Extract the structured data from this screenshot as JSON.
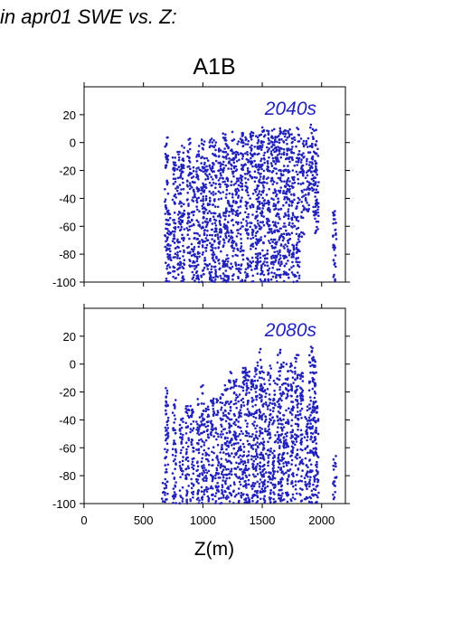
{
  "header": {
    "title": "in apr01 SWE vs. Z:"
  },
  "figure": {
    "title": "A1B",
    "xlabel": "Z(m)",
    "accent_color": "#2222bb"
  },
  "chart_data": [
    {
      "type": "scatter",
      "label": "2040s",
      "xlim": [
        0,
        2200
      ],
      "ylim": [
        -100,
        40
      ],
      "x_ticks": [
        0,
        500,
        1000,
        1500,
        2000
      ],
      "y_ticks": [
        20,
        0,
        -20,
        -40,
        -60,
        -80,
        -100
      ],
      "grid": false,
      "columns": [
        [
          695,
          -100,
          4
        ],
        [
          720,
          -100,
          -50
        ],
        [
          760,
          -100,
          -10
        ],
        [
          800,
          -95,
          -5
        ],
        [
          830,
          -100,
          0
        ],
        [
          880,
          -90,
          3
        ],
        [
          920,
          -100,
          -15
        ],
        [
          960,
          -100,
          2
        ],
        [
          1000,
          -100,
          5
        ],
        [
          1030,
          -95,
          -8
        ],
        [
          1070,
          -100,
          6
        ],
        [
          1100,
          -100,
          2
        ],
        [
          1140,
          -98,
          4
        ],
        [
          1180,
          -100,
          7
        ],
        [
          1210,
          -100,
          3
        ],
        [
          1250,
          -100,
          8
        ],
        [
          1290,
          -100,
          5
        ],
        [
          1330,
          -100,
          7
        ],
        [
          1370,
          -100,
          6
        ],
        [
          1410,
          -100,
          8
        ],
        [
          1450,
          -100,
          7
        ],
        [
          1480,
          -100,
          10
        ],
        [
          1510,
          -100,
          12
        ],
        [
          1550,
          -100,
          9
        ],
        [
          1590,
          -100,
          10
        ],
        [
          1620,
          -100,
          8
        ],
        [
          1650,
          -100,
          11
        ],
        [
          1690,
          -100,
          9
        ],
        [
          1720,
          -100,
          10
        ],
        [
          1760,
          -100,
          9
        ],
        [
          1800,
          -100,
          11
        ],
        [
          1840,
          -70,
          5
        ],
        [
          1880,
          -50,
          3
        ],
        [
          1910,
          -40,
          13
        ],
        [
          1940,
          -55,
          10
        ],
        [
          1960,
          -65,
          5
        ],
        [
          2110,
          -100,
          -45
        ]
      ]
    },
    {
      "type": "scatter",
      "label": "2080s",
      "xlim": [
        0,
        2200
      ],
      "ylim": [
        -100,
        40
      ],
      "x_ticks": [
        0,
        500,
        1000,
        1500,
        2000
      ],
      "y_ticks": [
        20,
        0,
        -20,
        -40,
        -60,
        -80,
        -100
      ],
      "grid": false,
      "columns": [
        [
          670,
          -100,
          -85
        ],
        [
          695,
          -100,
          -15
        ],
        [
          760,
          -100,
          -25
        ],
        [
          820,
          -100,
          -35
        ],
        [
          870,
          -100,
          -30
        ],
        [
          910,
          -100,
          -30
        ],
        [
          960,
          -100,
          -25
        ],
        [
          1000,
          -100,
          -15
        ],
        [
          1040,
          -100,
          -30
        ],
        [
          1080,
          -100,
          -20
        ],
        [
          1120,
          -100,
          -25
        ],
        [
          1160,
          -100,
          -20
        ],
        [
          1200,
          -100,
          -15
        ],
        [
          1230,
          -100,
          -5
        ],
        [
          1270,
          -100,
          -10
        ],
        [
          1310,
          -100,
          -15
        ],
        [
          1350,
          -100,
          0
        ],
        [
          1380,
          -100,
          -5
        ],
        [
          1420,
          -100,
          -10
        ],
        [
          1450,
          -100,
          2
        ],
        [
          1490,
          -100,
          12
        ],
        [
          1520,
          -100,
          -5
        ],
        [
          1560,
          -100,
          0
        ],
        [
          1600,
          -100,
          -10
        ],
        [
          1640,
          -100,
          12
        ],
        [
          1670,
          -100,
          2
        ],
        [
          1710,
          -100,
          0
        ],
        [
          1750,
          -100,
          5
        ],
        [
          1790,
          -100,
          8
        ],
        [
          1830,
          -100,
          -5
        ],
        [
          1870,
          -100,
          -30
        ],
        [
          1910,
          -100,
          15
        ],
        [
          1940,
          -100,
          5
        ],
        [
          1960,
          -100,
          -30
        ],
        [
          2110,
          -100,
          -65
        ]
      ]
    }
  ]
}
